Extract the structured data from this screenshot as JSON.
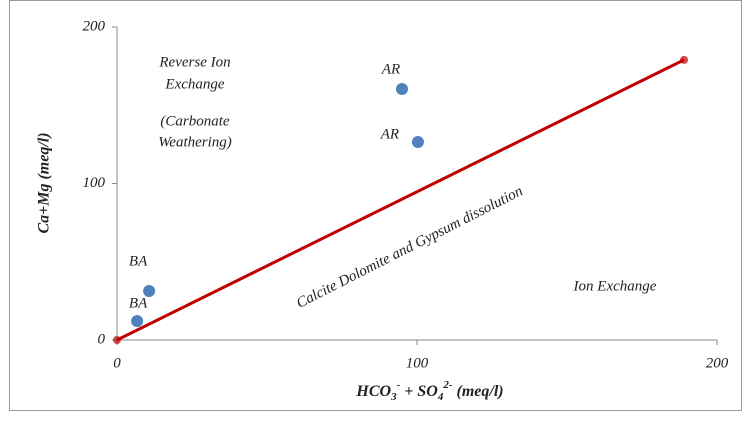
{
  "chart_data": {
    "type": "scatter",
    "x_label_parts": [
      "HCO",
      "3",
      "-",
      " + SO",
      "4",
      "2-",
      "  (meq/l)"
    ],
    "y_label": "Ca+Mg (meq/l)",
    "xlim": [
      0,
      200
    ],
    "ylim": [
      0,
      200
    ],
    "xticks": [
      0,
      100,
      200
    ],
    "yticks": [
      0,
      100,
      200
    ],
    "grid": false,
    "series": [
      {
        "color": "#4f81bd",
        "x": [
          6.7,
          10.7,
          95,
          100.3
        ],
        "values": [
          12.1,
          31.3,
          160.4,
          126.5
        ],
        "point_labels": [
          "BA",
          "BA",
          "AR",
          "AR"
        ]
      },
      {
        "color": "#c00000",
        "line": true,
        "x": [
          0,
          189
        ],
        "values": [
          0,
          179
        ]
      }
    ],
    "annotations": [
      "Reverse Ion",
      "Exchange",
      "(Carbonate",
      "Weathering)",
      "Calcite Dolomite and Gypsum dissolution",
      "Ion Exchange"
    ]
  }
}
